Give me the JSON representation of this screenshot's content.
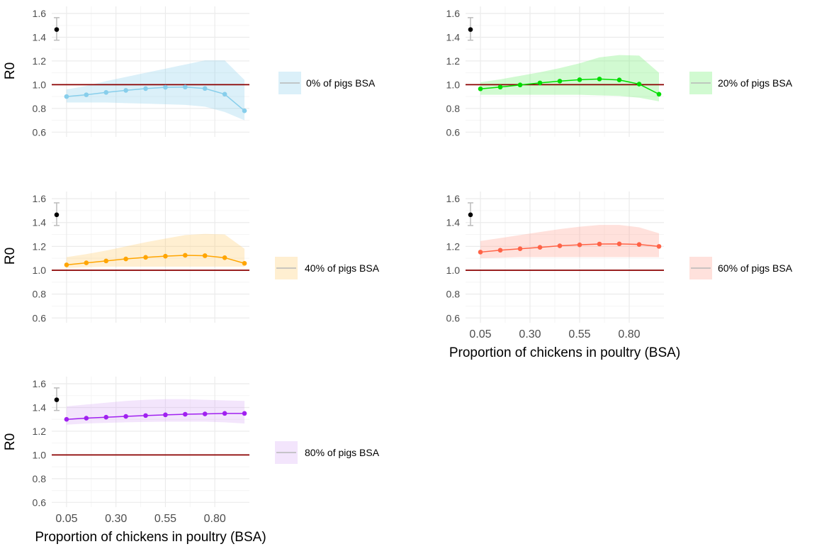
{
  "figure": {
    "ylabel": "R0",
    "xlabel": "Proportion of chickens in poultry (BSA)"
  },
  "chart_data": [
    {
      "type": "line",
      "panel": "0% of pigs BSA",
      "legend_label": "0% of pigs BSA",
      "color": "#87CEEB",
      "ribbon_color": "#87CEEB",
      "ylabel": "R0",
      "xlabel": "",
      "x_ticks": [
        "0.05",
        "0.30",
        "0.55",
        "0.80"
      ],
      "x_tick_values": [
        0.05,
        0.3,
        0.55,
        0.8
      ],
      "show_x_tick_labels": false,
      "show_xlabel": false,
      "y_ticks": [
        "0.6",
        "0.8",
        "1.0",
        "1.2",
        "1.4",
        "1.6"
      ],
      "y_tick_values": [
        0.6,
        0.8,
        1.0,
        1.2,
        1.4,
        1.6
      ],
      "xlim": [
        -0.025,
        0.975
      ],
      "ylim": [
        0.56,
        1.66
      ],
      "reference_line": 1.0,
      "baseline": {
        "x": 0.0,
        "y": 1.465,
        "ymin": 1.375,
        "ymax": 1.565
      },
      "x": [
        0.05,
        0.15,
        0.25,
        0.35,
        0.45,
        0.55,
        0.65,
        0.75,
        0.85,
        0.95
      ],
      "values": [
        0.9,
        0.915,
        0.935,
        0.952,
        0.967,
        0.978,
        0.98,
        0.968,
        0.92,
        0.78
      ],
      "lower": [
        0.85,
        0.85,
        0.85,
        0.845,
        0.84,
        0.835,
        0.83,
        0.815,
        0.77,
        0.7
      ],
      "upper": [
        0.96,
        0.99,
        1.03,
        1.065,
        1.1,
        1.135,
        1.17,
        1.205,
        1.205,
        1.04
      ]
    },
    {
      "type": "line",
      "panel": "20% of pigs BSA",
      "legend_label": "20% of pigs BSA",
      "color": "#00DD00",
      "ribbon_color": "#66EE66",
      "ylabel": "",
      "xlabel": "",
      "x_ticks": [
        "0.05",
        "0.30",
        "0.55",
        "0.80"
      ],
      "x_tick_values": [
        0.05,
        0.3,
        0.55,
        0.8
      ],
      "show_x_tick_labels": false,
      "show_xlabel": false,
      "y_ticks": [
        "0.6",
        "0.8",
        "1.0",
        "1.2",
        "1.4",
        "1.6"
      ],
      "y_tick_values": [
        0.6,
        0.8,
        1.0,
        1.2,
        1.4,
        1.6
      ],
      "xlim": [
        -0.025,
        0.975
      ],
      "ylim": [
        0.56,
        1.66
      ],
      "reference_line": 1.0,
      "baseline": {
        "x": 0.0,
        "y": 1.465,
        "ymin": 1.375,
        "ymax": 1.565
      },
      "x": [
        0.05,
        0.15,
        0.25,
        0.35,
        0.45,
        0.55,
        0.65,
        0.75,
        0.85,
        0.95
      ],
      "values": [
        0.965,
        0.98,
        0.998,
        1.015,
        1.03,
        1.042,
        1.048,
        1.04,
        1.005,
        0.92
      ],
      "lower": [
        0.915,
        0.915,
        0.915,
        0.915,
        0.915,
        0.915,
        0.91,
        0.905,
        0.89,
        0.86
      ],
      "upper": [
        1.02,
        1.045,
        1.075,
        1.105,
        1.14,
        1.18,
        1.23,
        1.25,
        1.245,
        1.1
      ]
    },
    {
      "type": "line",
      "panel": "40% of pigs BSA",
      "legend_label": "40% of pigs BSA",
      "color": "#FFA500",
      "ribbon_color": "#FFC966",
      "ylabel": "R0",
      "xlabel": "",
      "x_ticks": [
        "0.05",
        "0.30",
        "0.55",
        "0.80"
      ],
      "x_tick_values": [
        0.05,
        0.3,
        0.55,
        0.8
      ],
      "show_x_tick_labels": false,
      "show_xlabel": false,
      "y_ticks": [
        "0.6",
        "0.8",
        "1.0",
        "1.2",
        "1.4",
        "1.6"
      ],
      "y_tick_values": [
        0.6,
        0.8,
        1.0,
        1.2,
        1.4,
        1.6
      ],
      "xlim": [
        -0.025,
        0.975
      ],
      "ylim": [
        0.56,
        1.66
      ],
      "reference_line": 1.0,
      "baseline": {
        "x": 0.0,
        "y": 1.465,
        "ymin": 1.375,
        "ymax": 1.565
      },
      "x": [
        0.05,
        0.15,
        0.25,
        0.35,
        0.45,
        0.55,
        0.65,
        0.75,
        0.85,
        0.95
      ],
      "values": [
        1.045,
        1.062,
        1.078,
        1.095,
        1.108,
        1.118,
        1.125,
        1.122,
        1.105,
        1.058
      ],
      "lower": [
        1.02,
        1.025,
        1.03,
        1.03,
        1.03,
        1.03,
        1.03,
        1.03,
        1.03,
        1.03
      ],
      "upper": [
        1.11,
        1.135,
        1.165,
        1.2,
        1.235,
        1.265,
        1.295,
        1.305,
        1.3,
        1.18
      ]
    },
    {
      "type": "line",
      "panel": "60% of pigs BSA",
      "legend_label": "60% of pigs BSA",
      "color": "#FF6347",
      "ribbon_color": "#FF9A8A",
      "ylabel": "",
      "xlabel": "Proportion of chickens in poultry (BSA)",
      "x_ticks": [
        "0.05",
        "0.30",
        "0.55",
        "0.80"
      ],
      "x_tick_values": [
        0.05,
        0.3,
        0.55,
        0.8
      ],
      "show_x_tick_labels": true,
      "show_xlabel": true,
      "y_ticks": [
        "0.6",
        "0.8",
        "1.0",
        "1.2",
        "1.4",
        "1.6"
      ],
      "y_tick_values": [
        0.6,
        0.8,
        1.0,
        1.2,
        1.4,
        1.6
      ],
      "xlim": [
        -0.025,
        0.975
      ],
      "ylim": [
        0.56,
        1.66
      ],
      "reference_line": 1.0,
      "baseline": {
        "x": 0.0,
        "y": 1.465,
        "ymin": 1.375,
        "ymax": 1.565
      },
      "x": [
        0.05,
        0.15,
        0.25,
        0.35,
        0.45,
        0.55,
        0.65,
        0.75,
        0.85,
        0.95
      ],
      "values": [
        1.152,
        1.168,
        1.18,
        1.192,
        1.205,
        1.213,
        1.22,
        1.221,
        1.216,
        1.2
      ],
      "lower": [
        1.1,
        1.105,
        1.11,
        1.11,
        1.11,
        1.11,
        1.11,
        1.11,
        1.11,
        1.11
      ],
      "upper": [
        1.245,
        1.27,
        1.295,
        1.32,
        1.345,
        1.365,
        1.38,
        1.38,
        1.36,
        1.31
      ]
    },
    {
      "type": "line",
      "panel": "80% of pigs BSA",
      "legend_label": "80% of pigs BSA",
      "color": "#A020F0",
      "ribbon_color": "#D8A8F5",
      "ylabel": "R0",
      "xlabel": "Proportion of chickens in poultry (BSA)",
      "x_ticks": [
        "0.05",
        "0.30",
        "0.55",
        "0.80"
      ],
      "x_tick_values": [
        0.05,
        0.3,
        0.55,
        0.8
      ],
      "show_x_tick_labels": true,
      "show_xlabel": true,
      "y_ticks": [
        "0.6",
        "0.8",
        "1.0",
        "1.2",
        "1.4",
        "1.6"
      ],
      "y_tick_values": [
        0.6,
        0.8,
        1.0,
        1.2,
        1.4,
        1.6
      ],
      "xlim": [
        -0.025,
        0.975
      ],
      "ylim": [
        0.56,
        1.66
      ],
      "reference_line": 1.0,
      "baseline": {
        "x": 0.0,
        "y": 1.465,
        "ymin": 1.375,
        "ymax": 1.565
      },
      "x": [
        0.05,
        0.15,
        0.25,
        0.35,
        0.45,
        0.55,
        0.65,
        0.75,
        0.85,
        0.95
      ],
      "values": [
        1.3,
        1.31,
        1.318,
        1.325,
        1.332,
        1.338,
        1.343,
        1.346,
        1.35,
        1.35
      ],
      "lower": [
        1.255,
        1.265,
        1.27,
        1.275,
        1.278,
        1.28,
        1.28,
        1.28,
        1.275,
        1.265
      ],
      "upper": [
        1.41,
        1.425,
        1.44,
        1.455,
        1.465,
        1.47,
        1.47,
        1.465,
        1.46,
        1.455
      ]
    }
  ],
  "colors": {
    "reference_line": "#8B0000",
    "baseline_point": "#000000",
    "baseline_errorbar": "#BBBBBB",
    "legend_key_line": "#B8B8B8",
    "grid_major": "#EBEBEB",
    "grid_minor": "#F5F5F5",
    "tick_text": "#4D4D4D"
  }
}
